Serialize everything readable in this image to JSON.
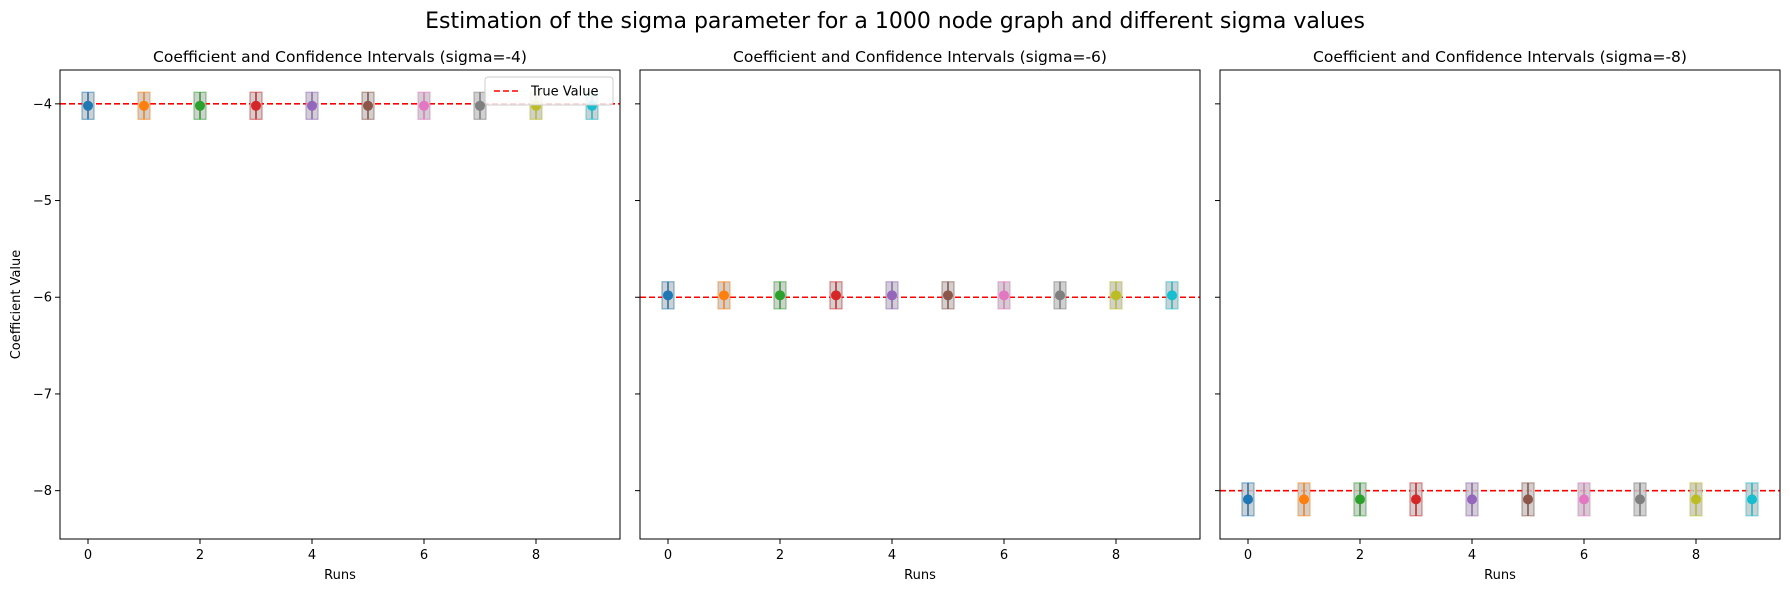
{
  "figure": {
    "suptitle": "Estimation of the sigma parameter for a 1000 node graph and different sigma values"
  },
  "chart_data": [
    {
      "type": "scatter",
      "title": "Coefficient and Confidence Intervals (sigma=-4)",
      "xlabel": "Runs",
      "ylabel": "Coefficient Value",
      "x": [
        0,
        1,
        2,
        3,
        4,
        5,
        6,
        7,
        8,
        9
      ],
      "values": [
        -4.02,
        -4.02,
        -4.02,
        -4.02,
        -4.02,
        -4.02,
        -4.02,
        -4.02,
        -4.02,
        -4.02
      ],
      "ci_lower": [
        -4.16,
        -4.16,
        -4.16,
        -4.16,
        -4.16,
        -4.16,
        -4.16,
        -4.16,
        -4.16,
        -4.16
      ],
      "ci_upper": [
        -3.88,
        -3.88,
        -3.88,
        -3.88,
        -3.88,
        -3.88,
        -3.88,
        -3.88,
        -3.88,
        -3.88
      ],
      "true_value": -4,
      "legend": {
        "label": "True Value",
        "position": "top-right"
      },
      "xlim": [
        -0.5,
        9.5
      ],
      "ylim": [
        -8.5,
        -3.65
      ],
      "xticks": [
        0,
        2,
        4,
        6,
        8
      ],
      "yticks": [
        -4,
        -5,
        -6,
        -7,
        -8
      ],
      "ytick_labels": [
        "−4",
        "−5",
        "−6",
        "−7",
        "−8"
      ],
      "show_yticklabels": true,
      "grid": false
    },
    {
      "type": "scatter",
      "title": "Coefficient and Confidence Intervals (sigma=-6)",
      "xlabel": "Runs",
      "ylabel": "",
      "x": [
        0,
        1,
        2,
        3,
        4,
        5,
        6,
        7,
        8,
        9
      ],
      "values": [
        -5.98,
        -5.98,
        -5.98,
        -5.98,
        -5.98,
        -5.98,
        -5.98,
        -5.98,
        -5.98,
        -5.98
      ],
      "ci_lower": [
        -6.12,
        -6.12,
        -6.12,
        -6.12,
        -6.12,
        -6.12,
        -6.12,
        -6.12,
        -6.12,
        -6.12
      ],
      "ci_upper": [
        -5.84,
        -5.84,
        -5.84,
        -5.84,
        -5.84,
        -5.84,
        -5.84,
        -5.84,
        -5.84,
        -5.84
      ],
      "true_value": -6,
      "xlim": [
        -0.5,
        9.5
      ],
      "ylim": [
        -8.5,
        -3.65
      ],
      "xticks": [
        0,
        2,
        4,
        6,
        8
      ],
      "yticks": [
        -4,
        -5,
        -6,
        -7,
        -8
      ],
      "show_yticklabels": false,
      "grid": false
    },
    {
      "type": "scatter",
      "title": "Coefficient and Confidence Intervals (sigma=-8)",
      "xlabel": "Runs",
      "ylabel": "",
      "x": [
        0,
        1,
        2,
        3,
        4,
        5,
        6,
        7,
        8,
        9
      ],
      "values": [
        -8.09,
        -8.09,
        -8.09,
        -8.09,
        -8.09,
        -8.09,
        -8.09,
        -8.09,
        -8.09,
        -8.09
      ],
      "ci_lower": [
        -8.26,
        -8.26,
        -8.26,
        -8.26,
        -8.26,
        -8.26,
        -8.26,
        -8.26,
        -8.26,
        -8.26
      ],
      "ci_upper": [
        -7.92,
        -7.92,
        -7.92,
        -7.92,
        -7.92,
        -7.92,
        -7.92,
        -7.92,
        -7.92,
        -7.92
      ],
      "true_value": -8,
      "xlim": [
        -0.5,
        9.5
      ],
      "ylim": [
        -8.5,
        -3.65
      ],
      "xticks": [
        0,
        2,
        4,
        6,
        8
      ],
      "yticks": [
        -4,
        -5,
        -6,
        -7,
        -8
      ],
      "show_yticklabels": false,
      "grid": false
    }
  ],
  "colors": {
    "series": [
      "#1f77b4",
      "#ff7f0e",
      "#2ca02c",
      "#d62728",
      "#9467bd",
      "#8c564b",
      "#e377c2",
      "#7f7f7f",
      "#bcbd22",
      "#17becf"
    ],
    "true_value_line": "#ff0000",
    "ci_band": "#c8c8c8"
  }
}
